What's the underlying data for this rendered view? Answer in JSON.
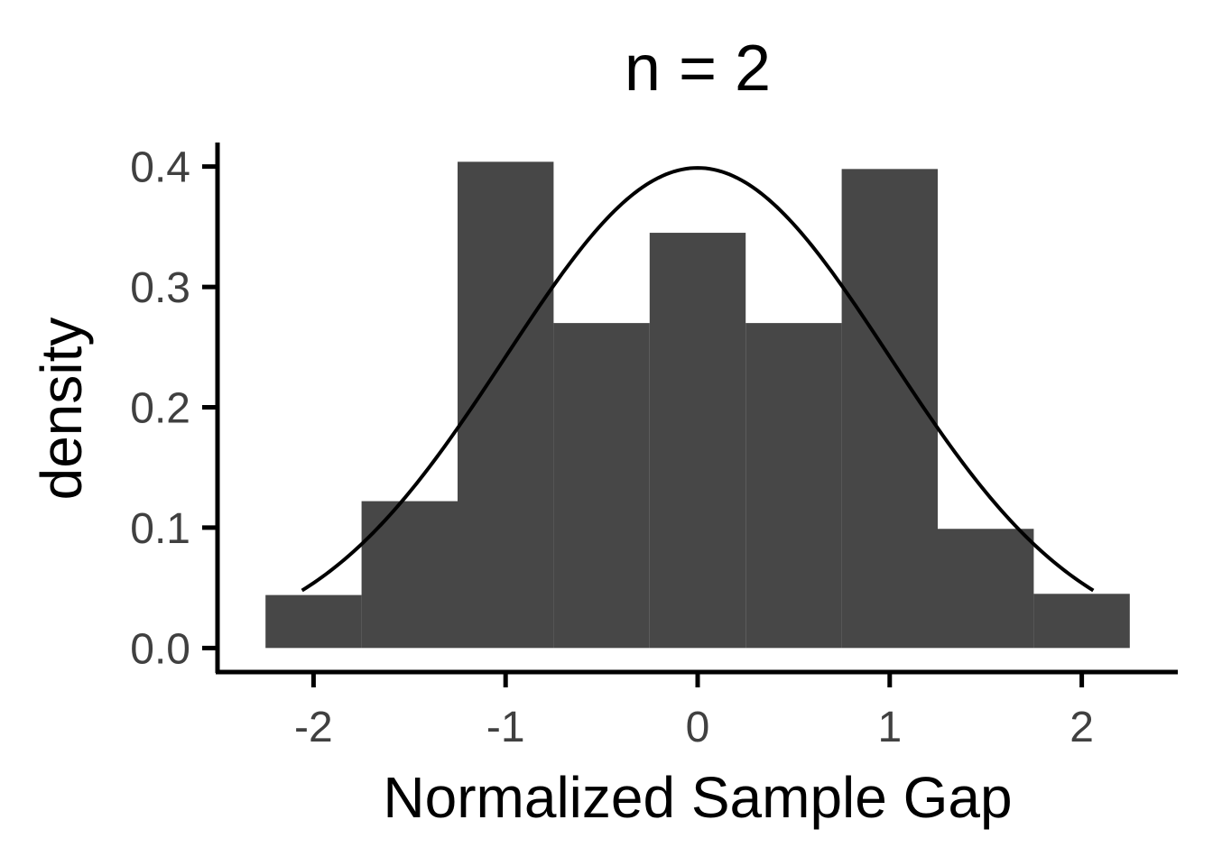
{
  "chart_data": {
    "type": "bar",
    "title": "n = 2",
    "xlabel": "Normalized Sample Gap",
    "ylabel": "density",
    "xlim": [
      -2.5,
      2.5
    ],
    "ylim": [
      -0.02,
      0.42
    ],
    "x_ticks": [
      -2,
      -1,
      0,
      1,
      2
    ],
    "x_tick_labels": [
      "-2",
      "-1",
      "0",
      "1",
      "2"
    ],
    "y_ticks": [
      0.0,
      0.1,
      0.2,
      0.3,
      0.4
    ],
    "y_tick_labels": [
      "0.0",
      "0.1",
      "0.2",
      "0.3",
      "0.4"
    ],
    "bins": [
      {
        "x0": -2.25,
        "x1": -1.75,
        "density": 0.044
      },
      {
        "x0": -1.75,
        "x1": -1.25,
        "density": 0.122
      },
      {
        "x0": -1.25,
        "x1": -0.75,
        "density": 0.404
      },
      {
        "x0": -0.75,
        "x1": -0.25,
        "density": 0.27
      },
      {
        "x0": -0.25,
        "x1": 0.25,
        "density": 0.345
      },
      {
        "x0": 0.25,
        "x1": 0.75,
        "density": 0.27
      },
      {
        "x0": 0.75,
        "x1": 1.25,
        "density": 0.398
      },
      {
        "x0": 1.25,
        "x1": 1.75,
        "density": 0.099
      },
      {
        "x0": 1.75,
        "x1": 2.25,
        "density": 0.045
      }
    ],
    "overlay_curve": {
      "type": "normal-density",
      "mean": 0,
      "sd": 1,
      "x_range": [
        -2.06,
        2.06
      ],
      "color": "#000000"
    },
    "bar_color": "#474747",
    "grid": false,
    "legend": "none"
  }
}
